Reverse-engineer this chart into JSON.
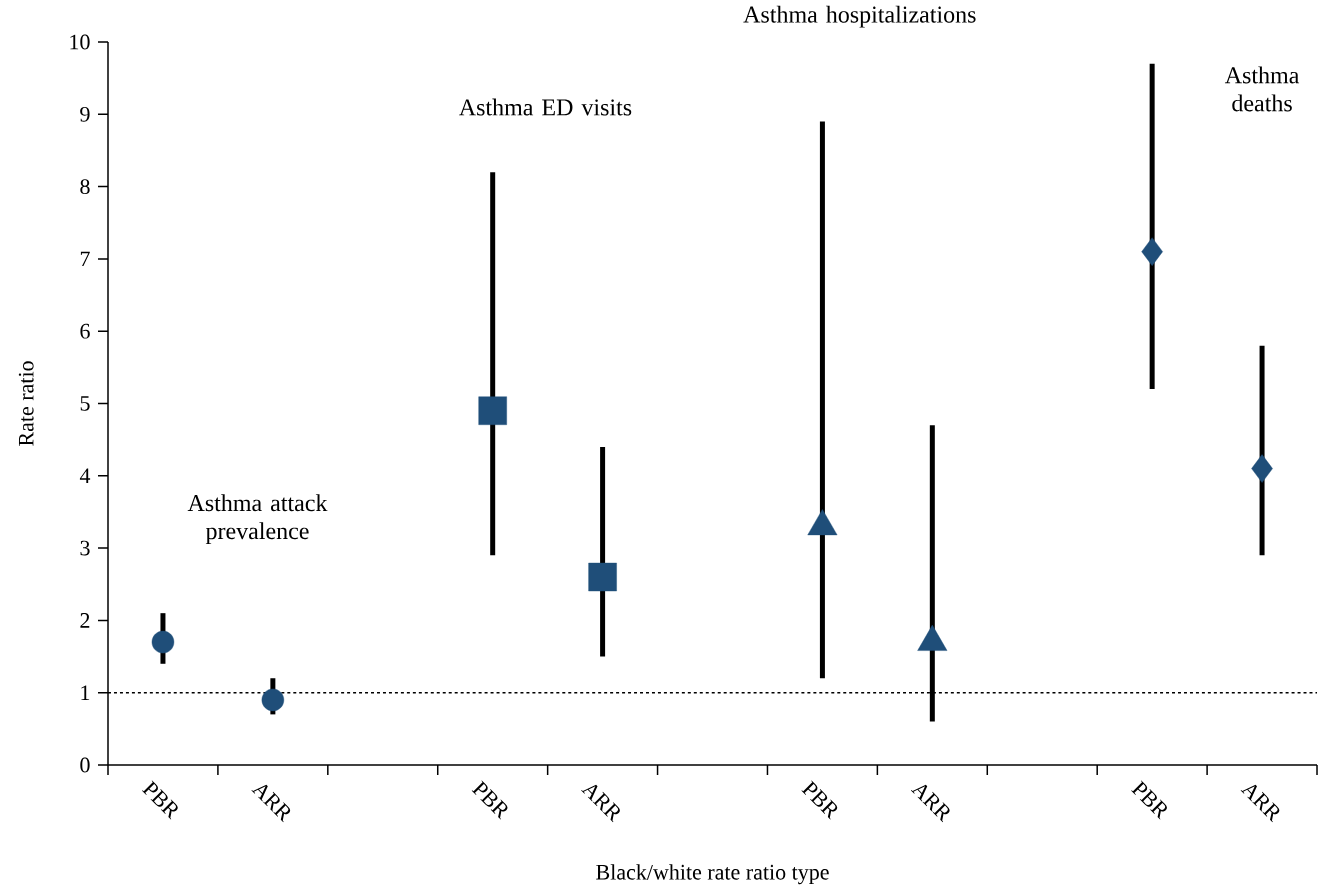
{
  "chart_data": {
    "type": "scatter",
    "xlabel": "Black/white rate ratio type",
    "ylabel": "Rate ratio",
    "categories": [
      "PBR",
      "ARR",
      null,
      "PBR",
      "ARR",
      null,
      "PBR",
      "ARR",
      null,
      "PBR",
      "ARR"
    ],
    "ylim": [
      0,
      10
    ],
    "yticks": [
      0,
      1,
      2,
      3,
      4,
      5,
      6,
      7,
      8,
      9,
      10
    ],
    "grid": false,
    "annotations": [
      "Asthma attack prevalence",
      "Asthma ED visits",
      "Asthma hospitalizations",
      "Asthma deaths"
    ],
    "ref_lines": [
      {
        "axis": "y",
        "value": 1,
        "line_style": "dashed",
        "color": "#000000"
      }
    ],
    "series": [
      {
        "color": "#1f4e79",
        "marker": "circle",
        "values": [
          1.7,
          0.9,
          null,
          null,
          null,
          null,
          null,
          null,
          null,
          null,
          null
        ],
        "errors": [
          [
            1.4,
            2.1
          ],
          [
            0.7,
            1.2
          ],
          null,
          null,
          null,
          null,
          null,
          null,
          null,
          null,
          null
        ]
      },
      {
        "color": "#1f4e79",
        "marker": "square",
        "values": [
          null,
          null,
          null,
          4.9,
          2.6,
          null,
          null,
          null,
          null,
          null,
          null
        ],
        "errors": [
          null,
          null,
          null,
          [
            2.9,
            8.2
          ],
          [
            1.5,
            4.4
          ],
          null,
          null,
          null,
          null,
          null,
          null
        ]
      },
      {
        "color": "#1f4e79",
        "marker": "triangle",
        "values": [
          null,
          null,
          null,
          null,
          null,
          null,
          3.3,
          1.7,
          null,
          null,
          null
        ],
        "errors": [
          null,
          null,
          null,
          null,
          null,
          null,
          [
            1.2,
            8.9
          ],
          [
            0.6,
            4.7
          ],
          null,
          null,
          null
        ]
      },
      {
        "color": "#1f4e79",
        "marker": "diamond",
        "values": [
          null,
          null,
          null,
          null,
          null,
          null,
          null,
          null,
          null,
          7.1,
          4.1
        ],
        "errors": [
          null,
          null,
          null,
          null,
          null,
          null,
          null,
          null,
          null,
          [
            5.2,
            9.7
          ],
          [
            2.9,
            5.8
          ]
        ]
      }
    ]
  }
}
